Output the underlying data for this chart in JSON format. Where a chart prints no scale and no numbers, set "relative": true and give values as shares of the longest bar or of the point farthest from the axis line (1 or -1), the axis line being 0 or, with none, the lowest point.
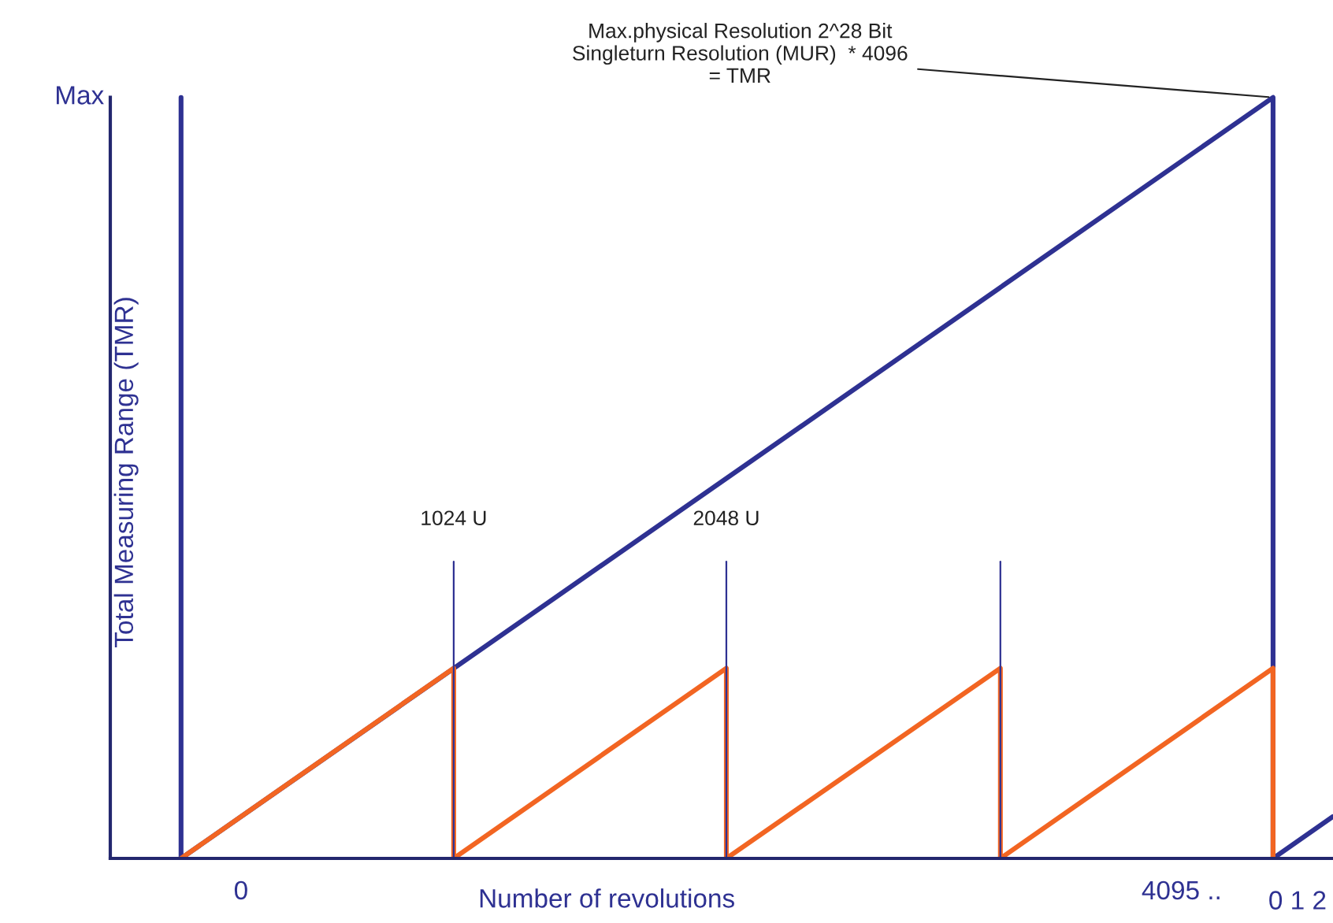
{
  "chart_data": {
    "type": "line",
    "xlabel": "Number of revolutions",
    "ylabel": "Total Measuring Range (TMR)",
    "xlim": [
      -569,
      4754
    ],
    "relative": true,
    "xticks": [
      {
        "value": 0,
        "label": "0"
      },
      {
        "value": 4095,
        "label": "4095 .."
      }
    ],
    "series": [
      {
        "color": "#2e3192",
        "x": [
          -261,
          -261
        ],
        "values": [
          0,
          1
        ]
      },
      {
        "color": "#2e3192",
        "x": [
          -261,
          4493,
          4493,
          4754
        ],
        "values": [
          0,
          1,
          0,
          0.055
        ]
      },
      {
        "color": "#f26522",
        "x": [
          -261,
          926,
          926,
          2113,
          2113,
          3306,
          3306,
          4493,
          4493
        ],
        "values": [
          0,
          0.25,
          0,
          0.25,
          0,
          0.25,
          0,
          0.25,
          0
        ]
      }
    ],
    "ref_lines": [
      {
        "axis": "x",
        "value": 926,
        "label": "1024 U",
        "color": "#2e3192"
      },
      {
        "axis": "x",
        "value": 2113,
        "label": "2048 U",
        "color": "#2e3192"
      },
      {
        "axis": "x",
        "value": 3306,
        "color": "#2e3192"
      }
    ],
    "annotations": [
      {
        "text": "Max.physical Resolution 2^28 Bit\nSingleturn Resolution (MUR)  * 4096\n= TMR",
        "x": 4493,
        "y": 1
      },
      "Max",
      "0 1 2"
    ],
    "grid": false,
    "legend": false,
    "marker": "none",
    "line_style": "solid"
  }
}
